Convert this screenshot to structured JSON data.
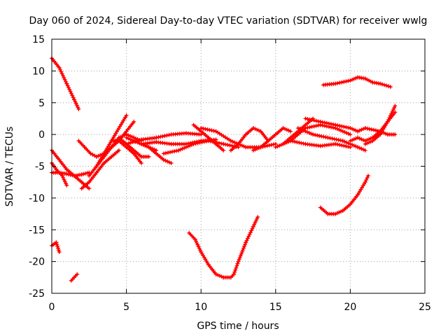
{
  "chart_data": {
    "type": "scatter",
    "title": "Day 060 of 2024, Sidereal Day-to-day VTEC variation (SDTVAR) for receiver wwlg",
    "xlabel": "GPS time / hours",
    "ylabel": "SDTVAR / TECUs",
    "xlim": [
      0,
      25
    ],
    "ylim": [
      -25,
      15
    ],
    "xticks": [
      "0",
      "5",
      "10",
      "15",
      "20",
      "25"
    ],
    "yticks": [
      "-25",
      "-20",
      "-15",
      "-10",
      "-5",
      "0",
      "5",
      "10",
      "15"
    ],
    "grid": true,
    "legend": "none",
    "series_color": "#ff0000",
    "series": [
      {
        "x": [
          0.0,
          0.5,
          1.0,
          1.5,
          1.8
        ],
        "y": [
          12.0,
          10.5,
          8.0,
          5.5,
          4.0
        ]
      },
      {
        "x": [
          0.0,
          0.5,
          1.0,
          1.5,
          2.0,
          2.5
        ],
        "y": [
          -2.5,
          -4.0,
          -5.5,
          -6.5,
          -7.5,
          -8.5
        ]
      },
      {
        "x": [
          0.0,
          0.5,
          1.0,
          1.5,
          2.0,
          2.5
        ],
        "y": [
          -6.0,
          -6.0,
          -6.2,
          -6.5,
          -6.3,
          -6.0
        ]
      },
      {
        "x": [
          0.0,
          0.3,
          0.7,
          1.0
        ],
        "y": [
          -4.5,
          -5.5,
          -6.5,
          -8.0
        ]
      },
      {
        "x": [
          1.8,
          2.2,
          2.6,
          3.0,
          3.5,
          4.0
        ],
        "y": [
          -1.0,
          -2.0,
          -3.0,
          -3.5,
          -3.0,
          -2.0
        ]
      },
      {
        "x": [
          2.0,
          2.5,
          3.0,
          3.5,
          4.0,
          4.5
        ],
        "y": [
          -8.5,
          -7.5,
          -6.0,
          -4.5,
          -3.5,
          -2.5
        ]
      },
      {
        "x": [
          2.5,
          3.0,
          3.5,
          4.0,
          4.5,
          5.0
        ],
        "y": [
          -6.5,
          -5.0,
          -3.0,
          -1.0,
          1.0,
          3.0
        ]
      },
      {
        "x": [
          3.0,
          3.5,
          4.0,
          4.5,
          5.0,
          5.5
        ],
        "y": [
          -5.0,
          -3.5,
          -2.0,
          -1.0,
          0.5,
          2.0
        ]
      },
      {
        "x": [
          3.5,
          4.0,
          4.5,
          5.0,
          5.5,
          6.0
        ],
        "y": [
          -3.0,
          -2.0,
          -0.5,
          0.0,
          -0.5,
          -1.0
        ]
      },
      {
        "x": [
          4.0,
          4.5,
          5.0,
          5.5,
          6.0
        ],
        "y": [
          -1.0,
          -1.0,
          -2.0,
          -3.0,
          -4.5
        ]
      },
      {
        "x": [
          4.5,
          5.0,
          5.5,
          6.0,
          6.5
        ],
        "y": [
          -0.5,
          -1.5,
          -2.5,
          -3.5,
          -3.5
        ]
      },
      {
        "x": [
          5.0,
          5.5,
          6.0,
          6.5,
          7.0
        ],
        "y": [
          -0.5,
          -1.0,
          -1.5,
          -2.0,
          -2.5
        ]
      },
      {
        "x": [
          5.5,
          6.0,
          6.5,
          7.0,
          7.5,
          8.0
        ],
        "y": [
          -1.0,
          -1.5,
          -2.0,
          -3.0,
          -4.0,
          -4.5
        ]
      },
      {
        "x": [
          5.0,
          6.0,
          7.0,
          8.0,
          9.0,
          10.0
        ],
        "y": [
          -1.5,
          -0.8,
          -0.5,
          0.0,
          0.2,
          0.0
        ]
      },
      {
        "x": [
          6.0,
          7.0,
          8.0,
          9.0,
          10.0,
          11.0
        ],
        "y": [
          -1.5,
          -1.2,
          -1.5,
          -1.5,
          -1.0,
          -0.8
        ]
      },
      {
        "x": [
          7.5,
          8.5,
          9.5,
          10.5,
          11.5,
          12.5
        ],
        "y": [
          -3.0,
          -2.5,
          -1.5,
          -1.0,
          -1.5,
          -2.0
        ]
      },
      {
        "x": [
          9.5,
          10.0,
          10.5,
          11.0,
          11.5
        ],
        "y": [
          1.5,
          0.5,
          -0.5,
          -1.5,
          -2.5
        ]
      },
      {
        "x": [
          10.0,
          11.0,
          12.0,
          13.0,
          14.0,
          15.0
        ],
        "y": [
          1.0,
          0.5,
          -1.0,
          -2.0,
          -2.0,
          -1.5
        ]
      },
      {
        "x": [
          12.0,
          12.5,
          13.0,
          13.5,
          14.0,
          14.5
        ],
        "y": [
          -2.5,
          -1.5,
          0.0,
          1.0,
          0.5,
          -1.0
        ]
      },
      {
        "x": [
          13.5,
          14.0,
          14.5,
          15.0,
          15.5,
          16.0
        ],
        "y": [
          -2.5,
          -2.0,
          -1.0,
          0.0,
          1.0,
          0.5
        ]
      },
      {
        "x": [
          15.0,
          16.0,
          17.0,
          18.0,
          19.0,
          20.0
        ],
        "y": [
          -2.0,
          -1.0,
          1.0,
          1.5,
          1.0,
          0.0
        ]
      },
      {
        "x": [
          15.5,
          16.0,
          16.5,
          17.0,
          17.5
        ],
        "y": [
          -1.5,
          -0.5,
          0.5,
          1.5,
          2.5
        ]
      },
      {
        "x": [
          16.0,
          17.0,
          18.0,
          19.0,
          20.0
        ],
        "y": [
          -1.0,
          -1.5,
          -1.8,
          -1.5,
          -2.0
        ]
      },
      {
        "x": [
          16.5,
          17.5,
          18.5,
          19.5,
          20.5,
          21.0
        ],
        "y": [
          1.0,
          0.0,
          -0.5,
          -1.0,
          -2.0,
          -2.5
        ]
      },
      {
        "x": [
          17.0,
          18.0,
          19.0,
          20.0,
          20.5
        ],
        "y": [
          2.5,
          2.0,
          1.5,
          1.0,
          0.5
        ]
      },
      {
        "x": [
          20.0,
          20.5,
          21.0,
          21.5,
          22.0
        ],
        "y": [
          -1.0,
          -0.5,
          -1.0,
          -0.5,
          0.0
        ]
      },
      {
        "x": [
          20.5,
          21.0,
          22.0,
          22.5,
          23.0
        ],
        "y": [
          0.5,
          1.0,
          0.5,
          0.0,
          0.0
        ]
      },
      {
        "x": [
          21.0,
          21.5,
          22.0,
          22.5,
          23.0
        ],
        "y": [
          -1.5,
          -1.0,
          0.0,
          2.0,
          4.5
        ]
      },
      {
        "x": [
          21.5,
          22.0,
          22.5,
          23.0
        ],
        "y": [
          -0.5,
          0.5,
          2.0,
          3.5
        ]
      },
      {
        "x": [
          18.2,
          19.0,
          20.0,
          20.5,
          21.0,
          21.5,
          22.0,
          22.7
        ],
        "y": [
          7.8,
          8.0,
          8.5,
          9.0,
          8.8,
          8.2,
          8.0,
          7.5
        ]
      },
      {
        "x": [
          18.0,
          18.5,
          19.0,
          19.5,
          20.0,
          20.5,
          21.0,
          21.2
        ],
        "y": [
          -11.5,
          -12.5,
          -12.5,
          -12.0,
          -11.0,
          -9.5,
          -7.5,
          -6.5
        ]
      },
      {
        "x": [
          9.2,
          9.6,
          10.0,
          10.5,
          11.0,
          11.5,
          12.0,
          12.2
        ],
        "y": [
          -15.5,
          -16.5,
          -18.5,
          -20.5,
          -22.0,
          -22.5,
          -22.5,
          -22.0
        ]
      },
      {
        "x": [
          12.2,
          12.5,
          13.0,
          13.5,
          13.8
        ],
        "y": [
          -22.0,
          -20.0,
          -17.0,
          -14.5,
          -13.0
        ]
      },
      {
        "x": [
          0.0,
          0.3,
          0.5
        ],
        "y": [
          -17.5,
          -17.0,
          -18.5
        ]
      },
      {
        "x": [
          1.3,
          1.5,
          1.7
        ],
        "y": [
          -23.0,
          -22.5,
          -22.0
        ]
      }
    ]
  }
}
